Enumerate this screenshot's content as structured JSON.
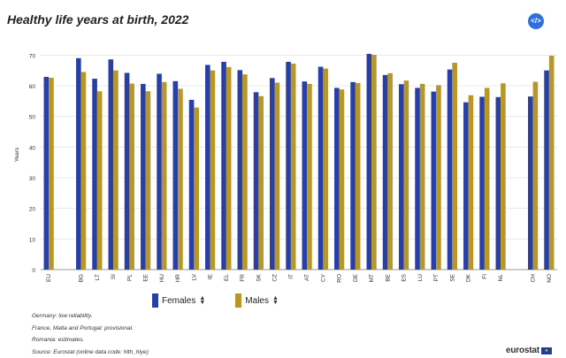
{
  "title": "Healthy life years at birth, 2022",
  "embed_icon_label": "</>",
  "legend": [
    {
      "label": "Females",
      "color": "#2a3fa6"
    },
    {
      "label": "Males",
      "color": "#b8972a"
    }
  ],
  "notes": [
    "Germany: low reliability.",
    "France, Malta and Portugal: provisional.",
    "Romania: estimates.",
    "Source: Eurostat (online data code: hlth_hlye)"
  ],
  "brand": {
    "name": "eurostat",
    "flag_stars": "★"
  },
  "chart_data": {
    "type": "bar",
    "ylabel": "Years",
    "ylim": [
      0,
      75
    ],
    "yticks": [
      0,
      10,
      20,
      30,
      40,
      50,
      60,
      70
    ],
    "categories": [
      "EU",
      "",
      "BG",
      "LT",
      "SI",
      "PL",
      "EE",
      "HU",
      "HR",
      "LV",
      "IE",
      "EL",
      "FR",
      "SK",
      "CZ",
      "IT",
      "AT",
      "CY",
      "RO",
      "DE",
      "MT",
      "BE",
      "ES",
      "LU",
      "PT",
      "SE",
      "DK",
      "FI",
      "NL",
      "",
      "CH",
      "NO"
    ],
    "series": [
      {
        "name": "Females",
        "values": [
          62.9,
          null,
          69.0,
          62.3,
          68.6,
          64.2,
          60.6,
          63.9,
          61.5,
          55.4,
          66.8,
          67.8,
          65.1,
          57.9,
          62.5,
          67.8,
          61.4,
          66.2,
          59.3,
          61.2,
          70.4,
          63.5,
          60.5,
          59.3,
          58.1,
          65.3,
          54.6,
          56.4,
          56.3,
          null,
          56.5,
          65.0
        ]
      },
      {
        "name": "Males",
        "values": [
          62.6,
          null,
          64.5,
          58.2,
          65.0,
          60.7,
          58.2,
          61.2,
          59.0,
          52.9,
          65.0,
          66.1,
          63.7,
          56.6,
          61.0,
          67.2,
          60.6,
          65.6,
          58.8,
          60.9,
          70.1,
          64.1,
          61.7,
          60.6,
          60.2,
          67.5,
          56.9,
          59.3,
          60.8,
          null,
          61.3,
          69.8
        ]
      }
    ]
  }
}
